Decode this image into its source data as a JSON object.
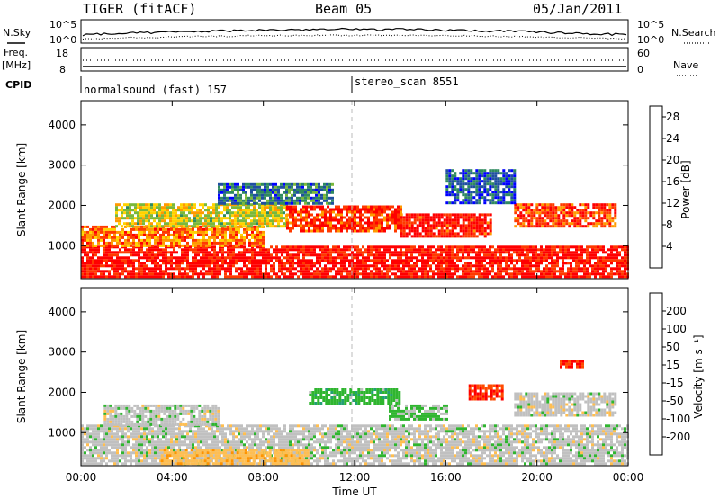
{
  "header": {
    "station": "TIGER (fitACF)",
    "beam": "Beam 05",
    "date": "05/Jan/2011"
  },
  "top_panels": {
    "nsky_label": "N.Sky",
    "nsky_ticks": [
      "10^5",
      "10^0"
    ],
    "nsearch_label": "N.Search",
    "nsearch_ticks": [
      "10^5",
      "10^0"
    ],
    "freq_label": "Freq.",
    "freq_unit": "[MHz]",
    "freq_ticks": [
      "18",
      "8"
    ],
    "nave_label": "Nave",
    "nave_ticks": [
      "60",
      "0"
    ],
    "cpid_label": "CPID",
    "cpid_segments": [
      {
        "name": "normalsound (fast) 157",
        "start_hour": 0,
        "end_hour": 12
      },
      {
        "name": "stereo_scan 8551",
        "start_hour": 12,
        "end_hour": 24
      }
    ]
  },
  "chart_data": [
    {
      "type": "heatmap",
      "ylabel": "Slant Range [km]",
      "xlabel": "Time UT",
      "x_ticks": [
        "00:00",
        "04:00",
        "08:00",
        "12:00",
        "16:00",
        "20:00",
        "00:00"
      ],
      "xlim_hours": [
        0,
        24
      ],
      "y_ticks": [
        1000,
        2000,
        3000,
        4000
      ],
      "ylim": [
        180,
        4600
      ],
      "colorbar": {
        "label": "Power [dB]",
        "ticks": [
          4,
          8,
          12,
          16,
          20,
          24,
          28
        ],
        "range": [
          0,
          30
        ],
        "colors": [
          "#0000ff",
          "#1f4fa0",
          "#2f8a5f",
          "#7ab83a",
          "#ffd200",
          "#ff9a00",
          "#ff3a00",
          "#ff0000"
        ]
      },
      "echo_regions": [
        {
          "t0": 0.0,
          "t1": 24.0,
          "r0": 200,
          "r1": 1000,
          "value": 28
        },
        {
          "t0": 0.0,
          "t1": 8.0,
          "r0": 1000,
          "r1": 1500,
          "value": 22
        },
        {
          "t0": 1.5,
          "t1": 9.0,
          "r0": 1500,
          "r1": 2050,
          "value": 16
        },
        {
          "t0": 9.0,
          "t1": 14.0,
          "r0": 1350,
          "r1": 2000,
          "value": 26
        },
        {
          "t0": 14.0,
          "t1": 18.0,
          "r0": 1200,
          "r1": 1800,
          "value": 27
        },
        {
          "t0": 19.0,
          "t1": 23.5,
          "r0": 1500,
          "r1": 2050,
          "value": 25
        },
        {
          "t0": 6.0,
          "t1": 11.0,
          "r0": 2050,
          "r1": 2550,
          "value": 8
        },
        {
          "t0": 16.0,
          "t1": 19.0,
          "r0": 2050,
          "r1": 2900,
          "value": 6
        }
      ]
    },
    {
      "type": "heatmap",
      "ylabel": "Slant Range [km]",
      "xlabel": "Time UT",
      "x_ticks": [
        "00:00",
        "04:00",
        "08:00",
        "12:00",
        "16:00",
        "20:00",
        "00:00"
      ],
      "xlim_hours": [
        0,
        24
      ],
      "y_ticks": [
        1000,
        2000,
        3000,
        4000
      ],
      "ylim": [
        180,
        4600
      ],
      "colorbar": {
        "label": "Velocity [m s⁻¹]",
        "ticks": [
          200,
          100,
          50,
          15,
          -15,
          -50,
          -100,
          -200
        ],
        "range": [
          -250,
          250
        ],
        "colors": [
          "#ff0000",
          "#ff4a00",
          "#ff9400",
          "#ffbe50",
          "#c0c0c0",
          "#2fb52f",
          "#22a074",
          "#1f5ab4",
          "#1a2dbe"
        ]
      },
      "echo_regions": [
        {
          "t0": 0.0,
          "t1": 24.0,
          "r0": 200,
          "r1": 1200,
          "value": 0
        },
        {
          "t0": 1.0,
          "t1": 6.0,
          "r0": 1200,
          "r1": 1700,
          "value": 0
        },
        {
          "t0": 10.0,
          "t1": 14.0,
          "r0": 1700,
          "r1": 2100,
          "value": 60
        },
        {
          "t0": 13.5,
          "t1": 16.0,
          "r0": 1300,
          "r1": 1700,
          "value": 40
        },
        {
          "t0": 17.0,
          "t1": 18.5,
          "r0": 1800,
          "r1": 2200,
          "value": -180
        },
        {
          "t0": 19.0,
          "t1": 23.5,
          "r0": 1400,
          "r1": 2000,
          "value": 0
        },
        {
          "t0": 3.5,
          "t1": 10.0,
          "r0": 250,
          "r1": 600,
          "value": -60
        },
        {
          "t0": 21.0,
          "t1": 22.0,
          "r0": 2600,
          "r1": 2800,
          "value": -200
        }
      ]
    }
  ]
}
